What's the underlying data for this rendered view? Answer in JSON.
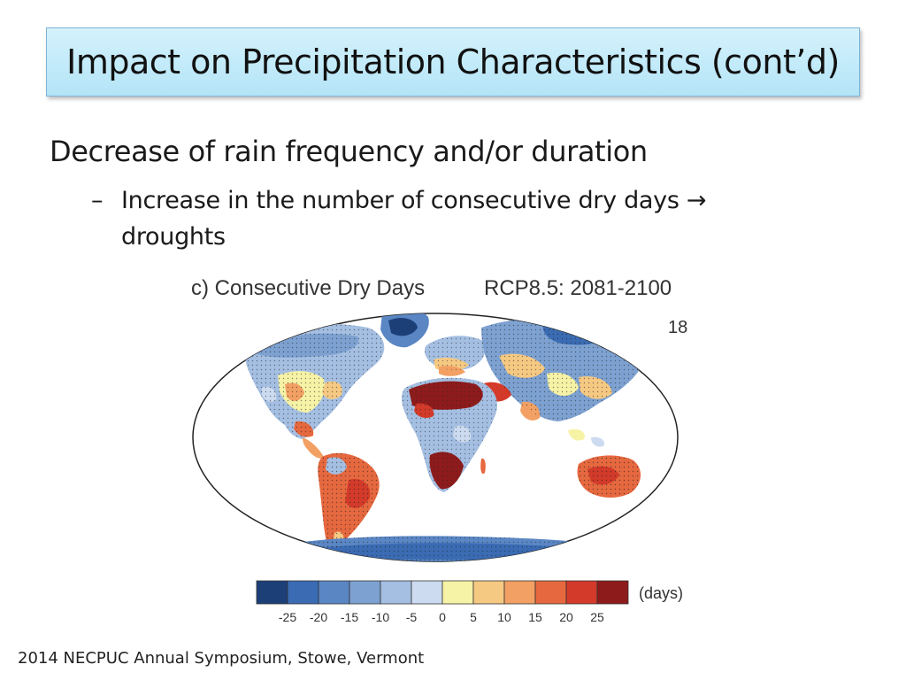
{
  "slide": {
    "title": "Impact on Precipitation Characteristics (cont’d)",
    "bullet_main": "Decrease of rain frequency and/or duration",
    "sub_bullet_dash": "–",
    "sub_bullet_line1": "Increase in the number of consecutive dry days",
    "sub_bullet_arrow": "→",
    "sub_bullet_line2": "droughts",
    "footer": "2014 NECPUC Annual Symposium, Stowe, Vermont"
  },
  "figure": {
    "panel_title": "c) Consecutive Dry Days",
    "scenario": "RCP8.5: 2081-2100",
    "model_count": "18",
    "colorbar": {
      "unit": "(days)",
      "ticks": [
        "-25",
        "-20",
        "-15",
        "-10",
        "-5",
        "0",
        "5",
        "10",
        "15",
        "20",
        "25"
      ],
      "colors": [
        "#1d3f78",
        "#3a6bb3",
        "#5a86c4",
        "#7da1d1",
        "#a4bfe2",
        "#cddbf0",
        "#f6f2a6",
        "#f6c983",
        "#f2a063",
        "#e6683f",
        "#d33a2a",
        "#8e1b1b"
      ]
    }
  }
}
